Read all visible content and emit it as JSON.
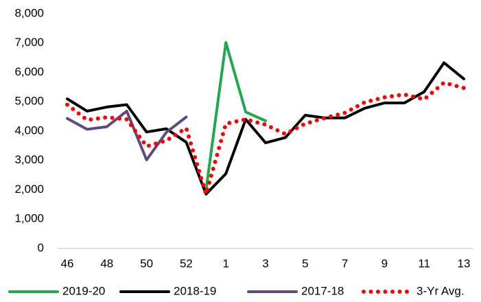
{
  "chart_data": {
    "type": "line",
    "categories": [
      "46",
      null,
      "48",
      null,
      "50",
      null,
      "52",
      null,
      "1",
      null,
      "3",
      null,
      "5",
      null,
      "7",
      null,
      "9",
      null,
      "11",
      null,
      "13"
    ],
    "ylim": [
      0,
      8000
    ],
    "yticks": [
      0,
      {
        "value": 1000,
        "label": "1,000"
      },
      {
        "value": 2000,
        "label": "2,000"
      },
      {
        "value": 3000,
        "label": "3,000"
      },
      {
        "value": 4000,
        "label": "4,000"
      },
      {
        "value": 5000,
        "label": "5,000"
      },
      {
        "value": 6000,
        "label": "6,000"
      },
      {
        "value": 7000,
        "label": "7,000"
      },
      {
        "value": 8000,
        "label": "8,000"
      }
    ],
    "grid": false,
    "legend": "bottom",
    "series": [
      {
        "name": "2019-20",
        "color": "#1ea84f",
        "style": "solid",
        "values": [
          null,
          null,
          null,
          null,
          null,
          null,
          null,
          2000,
          7020,
          4650,
          4350,
          null,
          null,
          null,
          null,
          null,
          null,
          null,
          null,
          null,
          null
        ]
      },
      {
        "name": "2018-19",
        "color": "#000000",
        "style": "solid",
        "values": [
          5100,
          4680,
          4820,
          4900,
          3970,
          4080,
          3620,
          1850,
          2550,
          4400,
          3600,
          3780,
          4540,
          4450,
          4450,
          4780,
          4960,
          4960,
          5340,
          6330,
          5780
        ]
      },
      {
        "name": "2017-18",
        "color": "#5e4a7e",
        "style": "solid",
        "values": [
          4430,
          4060,
          4150,
          4680,
          3020,
          3960,
          4480,
          null,
          null,
          null,
          null,
          null,
          null,
          null,
          null,
          null,
          null,
          null,
          null,
          null,
          null
        ]
      },
      {
        "name": "3-Yr Avg.",
        "color": "#ff0000",
        "style": "dotted",
        "values": [
          4900,
          4380,
          4470,
          4400,
          3480,
          3680,
          4100,
          1850,
          4250,
          4400,
          4220,
          3900,
          4250,
          4450,
          4620,
          4980,
          5150,
          5250,
          5080,
          5650,
          5470
        ]
      }
    ]
  }
}
